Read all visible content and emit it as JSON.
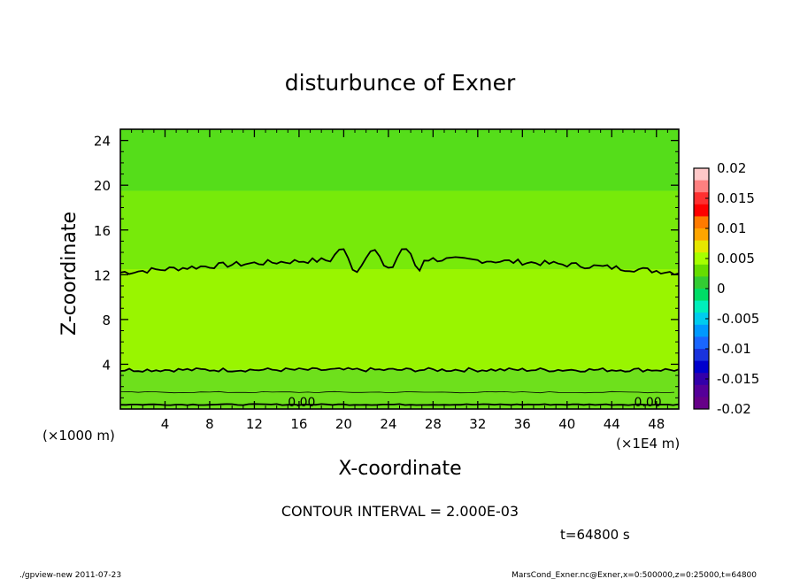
{
  "chart_data": {
    "type": "heatmap",
    "title": "disturbunce of Exner",
    "xlabel": "X-coordinate",
    "ylabel": "Z-coordinate",
    "x_unit": "(×1E4 m)",
    "y_unit": "(×1000 m)",
    "xlim": [
      0,
      50
    ],
    "ylim": [
      0,
      25
    ],
    "x_ticks": [
      "4",
      "8",
      "12",
      "16",
      "20",
      "24",
      "28",
      "32",
      "36",
      "40",
      "44",
      "48"
    ],
    "y_ticks": [
      "4",
      "8",
      "12",
      "16",
      "20",
      "24"
    ],
    "x_tick_values": [
      4,
      8,
      12,
      16,
      20,
      24,
      28,
      32,
      36,
      40,
      44,
      48
    ],
    "y_tick_values": [
      4,
      8,
      12,
      16,
      20,
      24
    ],
    "colorbar": {
      "labels": [
        "0.02",
        "0.015",
        "0.01",
        "0.005",
        "0",
        "-0.005",
        "-0.01",
        "-0.015",
        "-0.02"
      ],
      "values": [
        0.02,
        0.015,
        0.01,
        0.005,
        0,
        -0.005,
        -0.01,
        -0.015,
        -0.02
      ],
      "colors": [
        "#ffc8c8",
        "#ff8080",
        "#ff3030",
        "#ff0000",
        "#ff7a00",
        "#ffa500",
        "#e6e600",
        "#a6ff00",
        "#66dd00",
        "#33cc33",
        "#00dd66",
        "#00eebb",
        "#00ccee",
        "#0099ff",
        "#1a66ff",
        "#1a33dd",
        "#0000cc",
        "#3300aa",
        "#550099",
        "#660088"
      ]
    },
    "bands": [
      {
        "z": [
          19.5,
          25.0
        ],
        "range": "0 to 0.002",
        "color": "#55dd1a"
      },
      {
        "z": [
          12.5,
          19.5
        ],
        "range": "0.002 to 0.004",
        "color": "#77ea0a"
      },
      {
        "z": [
          3.5,
          12.5
        ],
        "range": "0.004 to 0.006",
        "color": "#99f500"
      },
      {
        "z": [
          0.0,
          3.5
        ],
        "range": "0 to 0.004",
        "color": "#6ee01c"
      }
    ],
    "contours": [
      {
        "level": "0.004",
        "z_mean": 12.8
      },
      {
        "level": "0.004",
        "z_mean": 3.5
      },
      {
        "level": "0.002",
        "z_mean": 1.5
      },
      {
        "level": "0.00",
        "z_mean": 0.4
      }
    ],
    "contour_labels": [
      {
        "text": "0.00",
        "x": 15.0,
        "z": 0.25
      },
      {
        "text": "0.00",
        "x": 46.0,
        "z": 0.25
      }
    ]
  },
  "contour_interval": "CONTOUR INTERVAL = 2.000E-03",
  "time_label": "t=64800 s",
  "footer_left": "./gpview-new   2011-07-23",
  "footer_right": "MarsCond_Exner.nc@Exner,x=0:500000,z=0:25000,t=64800"
}
